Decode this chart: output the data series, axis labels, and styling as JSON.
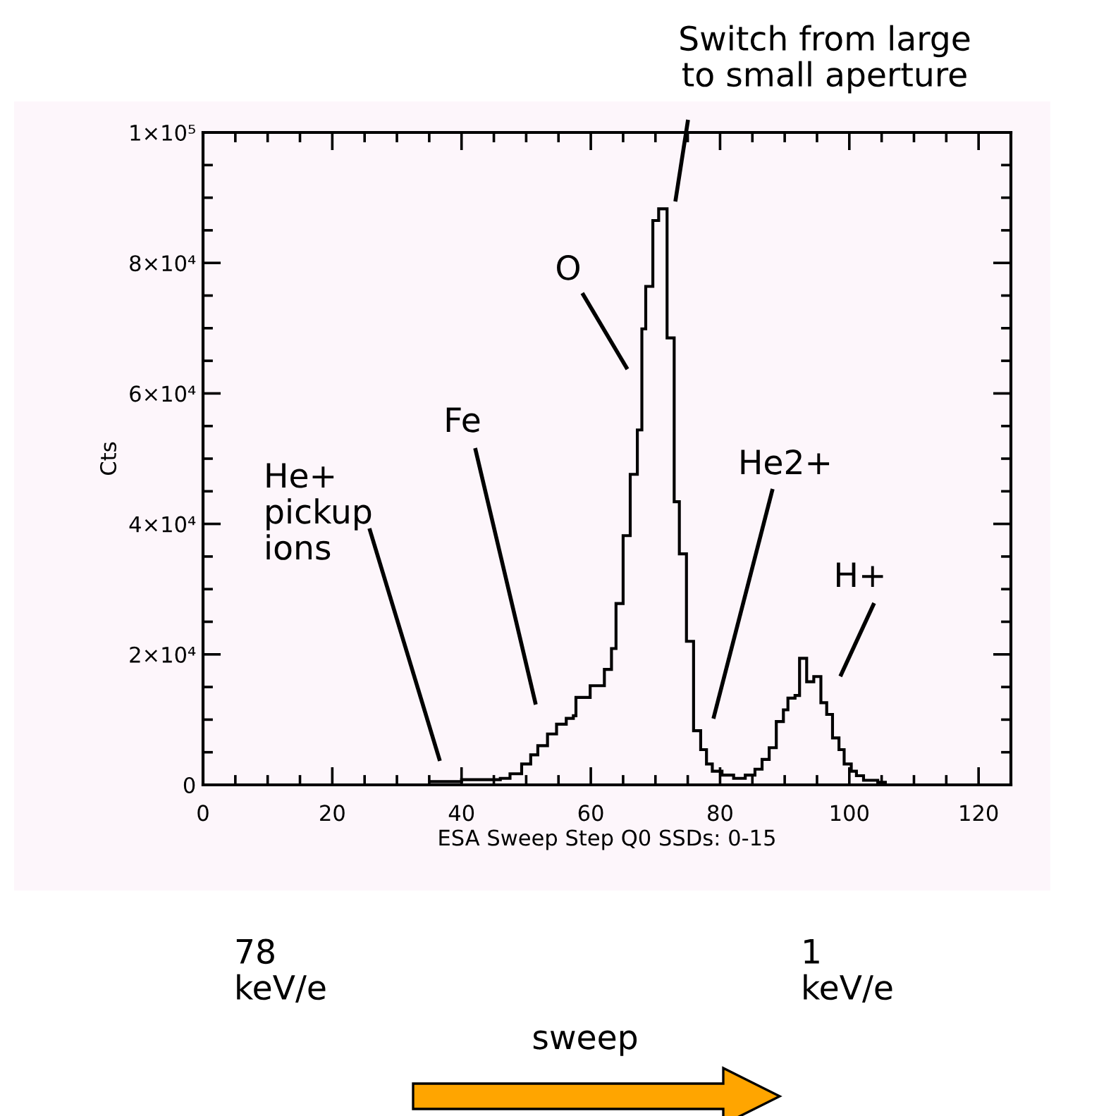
{
  "chart_data": {
    "type": "histogram",
    "xlabel": "ESA Sweep Step Q0 SSDs: 0-15",
    "ylabel": "Cts",
    "bins": [
      35.1,
      40.0,
      46.0,
      47.5,
      49.3,
      50.7,
      51.8,
      53.3,
      54.7,
      56.2,
      57.3,
      57.7,
      59.9,
      62.1,
      63.2,
      63.9,
      65.0,
      66.1,
      67.2,
      67.9,
      68.5,
      69.6,
      70.5,
      71.8,
      72.9,
      73.7,
      74.8,
      75.9,
      77.0,
      77.9,
      78.8,
      80.3,
      82.1,
      83.9,
      85.4,
      86.5,
      87.6,
      88.7,
      89.8,
      90.5,
      91.6,
      92.3,
      93.4,
      94.5,
      95.6,
      96.5,
      97.4,
      98.4,
      99.2,
      100.3,
      101.1,
      102.2,
      104.4,
      105.8
    ],
    "values": [
      500,
      800,
      1000,
      1700,
      3200,
      4600,
      6000,
      7800,
      9300,
      10200,
      10600,
      13400,
      15200,
      17700,
      20900,
      27800,
      38200,
      47600,
      54400,
      69900,
      76400,
      86500,
      88300,
      68500,
      43400,
      35400,
      22000,
      8300,
      5400,
      3200,
      2100,
      1500,
      1000,
      1500,
      2400,
      3900,
      5700,
      9700,
      11500,
      13300,
      13700,
      19400,
      15800,
      16600,
      12600,
      10800,
      7200,
      5400,
      3200,
      2100,
      1400,
      700,
      400
    ],
    "color": "#000000",
    "xlim": [
      0,
      125
    ],
    "xticks": [
      0,
      20,
      40,
      60,
      80,
      100,
      120
    ],
    "ylim": [
      0,
      100000
    ],
    "yticks": [
      {
        "value": 0,
        "label": "0"
      },
      {
        "value": 20000,
        "label": "2×10⁴"
      },
      {
        "value": 40000,
        "label": "4×10⁴"
      },
      {
        "value": 60000,
        "label": "6×10⁴"
      },
      {
        "value": 80000,
        "label": "8×10⁴"
      },
      {
        "value": 100000,
        "label": "1×10⁵"
      }
    ],
    "grid": false,
    "annotations": [
      "Switch from large\nto small aperture",
      "O",
      "Fe",
      "He+\npickup\nions",
      "He2+",
      "H+",
      "78\nkeV/e",
      "1\nkeV/e",
      "sweep"
    ]
  }
}
